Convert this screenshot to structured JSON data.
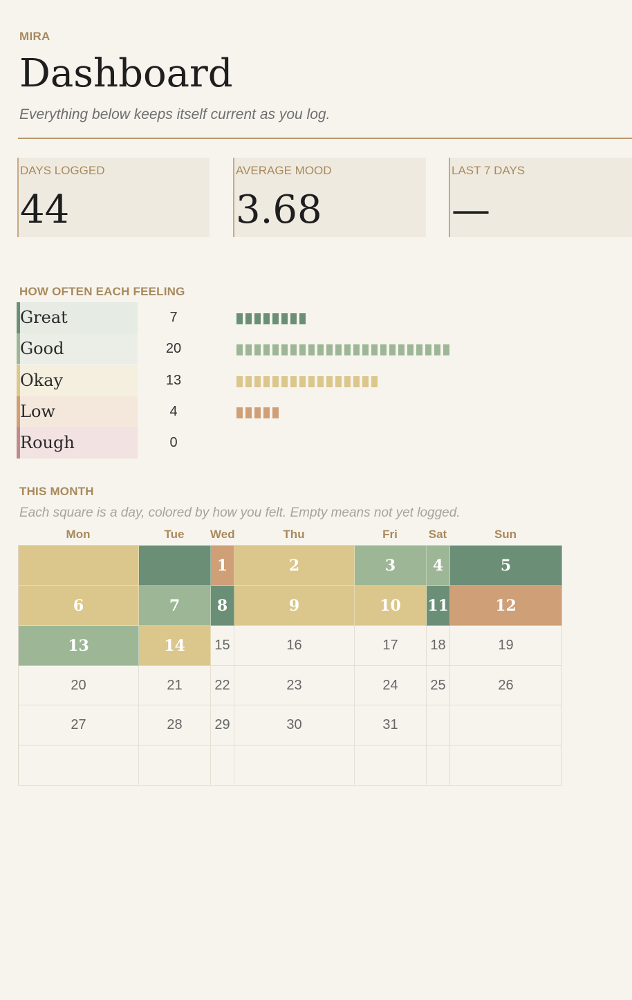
{
  "header": {
    "brand": "MIRA",
    "title": "Dashboard",
    "subtitle": "Everything below keeps itself current as you log."
  },
  "stats": [
    {
      "label": "DAYS LOGGED",
      "value": "44"
    },
    {
      "label": "AVERAGE MOOD",
      "value": "3.68"
    },
    {
      "label": "LAST 7 DAYS",
      "value": "—"
    }
  ],
  "feelings": {
    "heading": "HOW OFTEN EACH FEELING",
    "items": [
      {
        "name": "Great",
        "count": "7",
        "bar_units": 8,
        "color": "#6b8f76",
        "tint": "#e6ebe4"
      },
      {
        "name": "Good",
        "count": "20",
        "bar_units": 24,
        "color": "#9db796",
        "tint": "#ebeee6"
      },
      {
        "name": "Okay",
        "count": "13",
        "bar_units": 16,
        "color": "#dbc78c",
        "tint": "#f5efe0"
      },
      {
        "name": "Low",
        "count": "4",
        "bar_units": 5,
        "color": "#cf9f77",
        "tint": "#f4e7db"
      },
      {
        "name": "Rough",
        "count": "0",
        "bar_units": 0,
        "color": "#c08a8a",
        "tint": "#f2e2e1"
      }
    ]
  },
  "month": {
    "heading": "THIS MONTH",
    "note": "Each square is a day, colored by how you felt. Empty means not yet logged.",
    "weekdays": [
      "Mon",
      "Tue",
      "Wed",
      "Thu",
      "Fri",
      "Sat",
      "Sun"
    ],
    "weeks": [
      [
        {
          "day": "",
          "mood": "Okay"
        },
        {
          "day": "",
          "mood": "Great"
        },
        {
          "day": "1",
          "mood": "Low"
        },
        {
          "day": "2",
          "mood": "Okay"
        },
        {
          "day": "3",
          "mood": "Good"
        },
        {
          "day": "4",
          "mood": "Good"
        },
        {
          "day": "5",
          "mood": "Great"
        }
      ],
      [
        {
          "day": "6",
          "mood": "Okay"
        },
        {
          "day": "7",
          "mood": "Good"
        },
        {
          "day": "8",
          "mood": "Great"
        },
        {
          "day": "9",
          "mood": "Okay"
        },
        {
          "day": "10",
          "mood": "Okay"
        },
        {
          "day": "11",
          "mood": "Great"
        },
        {
          "day": "12",
          "mood": "Low"
        }
      ],
      [
        {
          "day": "13",
          "mood": "Good"
        },
        {
          "day": "14",
          "mood": "Okay"
        },
        {
          "day": "15",
          "mood": ""
        },
        {
          "day": "16",
          "mood": ""
        },
        {
          "day": "17",
          "mood": ""
        },
        {
          "day": "18",
          "mood": ""
        },
        {
          "day": "19",
          "mood": ""
        }
      ],
      [
        {
          "day": "20",
          "mood": ""
        },
        {
          "day": "21",
          "mood": ""
        },
        {
          "day": "22",
          "mood": ""
        },
        {
          "day": "23",
          "mood": ""
        },
        {
          "day": "24",
          "mood": ""
        },
        {
          "day": "25",
          "mood": ""
        },
        {
          "day": "26",
          "mood": ""
        }
      ],
      [
        {
          "day": "27",
          "mood": ""
        },
        {
          "day": "28",
          "mood": ""
        },
        {
          "day": "29",
          "mood": ""
        },
        {
          "day": "30",
          "mood": ""
        },
        {
          "day": "31",
          "mood": ""
        },
        {
          "day": "",
          "mood": ""
        },
        {
          "day": "",
          "mood": ""
        }
      ],
      [
        {
          "day": "",
          "mood": ""
        },
        {
          "day": "",
          "mood": ""
        },
        {
          "day": "",
          "mood": ""
        },
        {
          "day": "",
          "mood": ""
        },
        {
          "day": "",
          "mood": ""
        },
        {
          "day": "",
          "mood": ""
        },
        {
          "day": "",
          "mood": ""
        }
      ]
    ]
  }
}
